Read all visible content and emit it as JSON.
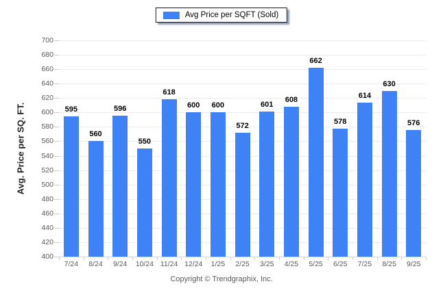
{
  "chart_data": {
    "type": "bar",
    "title": "",
    "legend_label": "Avg Price per SQFT (Sold)",
    "legend_position": "top-center",
    "categories": [
      "7/24",
      "8/24",
      "9/24",
      "10/24",
      "11/24",
      "12/24",
      "1/25",
      "2/25",
      "3/25",
      "4/25",
      "5/25",
      "6/25",
      "7/25",
      "8/25",
      "9/25"
    ],
    "values": [
      595,
      560,
      596,
      550,
      618,
      600,
      600,
      572,
      601,
      608,
      662,
      578,
      614,
      630,
      576
    ],
    "xlabel": "",
    "ylabel": "Avg. Price per SQ. FT.",
    "ylim": [
      400,
      700
    ],
    "ytick_step": 20,
    "grid": "horizontal",
    "value_labels": true
  },
  "colors": {
    "bar": "#3e82f5",
    "gridline": "#ececec",
    "axis_line": "#d0d0d0",
    "tick_mark": "#c9c9c9",
    "tick_text": "#595959",
    "value_text": "#000000",
    "legend_border": "#16161d"
  },
  "footer": {
    "copyright": "Copyright © Trendgraphix, Inc."
  }
}
